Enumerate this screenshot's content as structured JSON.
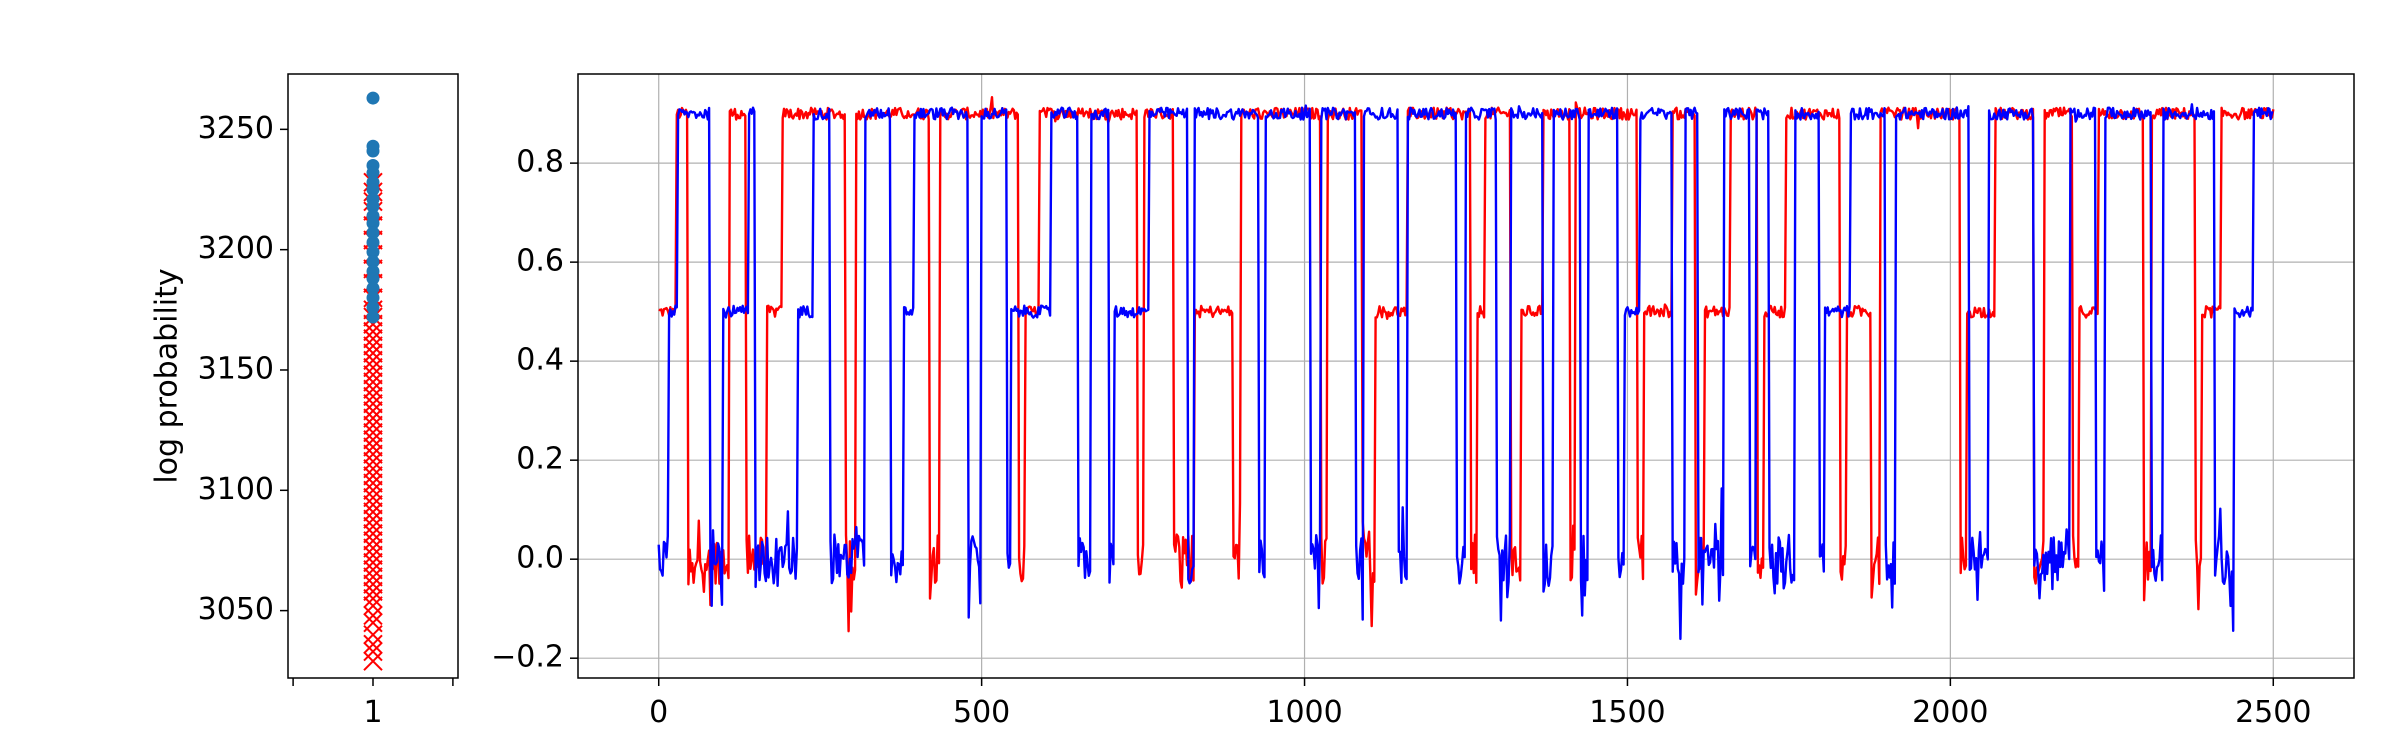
{
  "chart_data": [
    {
      "type": "scatter",
      "ylabel": "log probability",
      "ylim": [
        3022,
        3273
      ],
      "yticks": [
        3050,
        3100,
        3150,
        3200,
        3250
      ],
      "xlim": [
        0.5,
        1.5
      ],
      "xticks": [
        1
      ],
      "grid": false,
      "series": [
        {
          "marker": "x",
          "color": "#ff0000",
          "x": 1,
          "values": [
            3029,
            3033,
            3036,
            3040,
            3045,
            3048,
            3052,
            3055,
            3058,
            3061,
            3064,
            3067,
            3070,
            3073,
            3076,
            3079,
            3082,
            3085,
            3088,
            3091,
            3094,
            3097,
            3100,
            3103,
            3106,
            3109,
            3112,
            3115,
            3118,
            3121,
            3124,
            3127,
            3130,
            3133,
            3136,
            3139,
            3142,
            3145,
            3148,
            3151,
            3154,
            3157,
            3160,
            3163,
            3166,
            3169,
            3172,
            3175,
            3180,
            3186,
            3192,
            3198,
            3204,
            3210,
            3216,
            3220,
            3224,
            3228
          ]
        },
        {
          "marker": "o",
          "color": "#1f77b4",
          "x": 1,
          "values": [
            3263,
            3243,
            3241,
            3235,
            3232,
            3228,
            3225,
            3221,
            3218,
            3214,
            3211,
            3207,
            3203,
            3199,
            3195,
            3191,
            3188,
            3184,
            3180,
            3176,
            3172
          ]
        }
      ]
    },
    {
      "type": "line",
      "xlim": [
        -125,
        2625
      ],
      "ylim": [
        -0.24,
        0.98
      ],
      "xticks": [
        0,
        500,
        1000,
        1500,
        2000,
        2500
      ],
      "yticks": [
        -0.2,
        0.0,
        0.2,
        0.4,
        0.6,
        0.8
      ],
      "ytick_labels": [
        "−0.2",
        "0.0",
        "0.2",
        "0.4",
        "0.6",
        "0.8"
      ],
      "grid": true,
      "x_max": 2500,
      "series": [
        {
          "color": "#ff0000",
          "levels": [
            0.0,
            0.5,
            0.9
          ],
          "segments": [
            [
              0,
              1
            ],
            [
              28,
              2
            ],
            [
              45,
              0
            ],
            [
              110,
              2
            ],
            [
              135,
              0
            ],
            [
              168,
              1
            ],
            [
              192,
              2
            ],
            [
              290,
              0
            ],
            [
              305,
              2
            ],
            [
              420,
              0
            ],
            [
              435,
              2
            ],
            [
              558,
              0
            ],
            [
              568,
              1
            ],
            [
              590,
              2
            ],
            [
              742,
              0
            ],
            [
              752,
              2
            ],
            [
              798,
              0
            ],
            [
              830,
              1
            ],
            [
              890,
              0
            ],
            [
              902,
              2
            ],
            [
              1025,
              0
            ],
            [
              1035,
              2
            ],
            [
              1090,
              0
            ],
            [
              1110,
              1
            ],
            [
              1160,
              2
            ],
            [
              1258,
              0
            ],
            [
              1268,
              1
            ],
            [
              1280,
              2
            ],
            [
              1320,
              0
            ],
            [
              1335,
              1
            ],
            [
              1370,
              2
            ],
            [
              1412,
              0
            ],
            [
              1420,
              2
            ],
            [
              1516,
              0
            ],
            [
              1525,
              1
            ],
            [
              1570,
              2
            ],
            [
              1605,
              0
            ],
            [
              1620,
              1
            ],
            [
              1660,
              2
            ],
            [
              1702,
              0
            ],
            [
              1712,
              1
            ],
            [
              1745,
              2
            ],
            [
              1830,
              0
            ],
            [
              1840,
              1
            ],
            [
              1878,
              0
            ],
            [
              1892,
              2
            ],
            [
              2015,
              0
            ],
            [
              2025,
              1
            ],
            [
              2070,
              2
            ],
            [
              2130,
              0
            ],
            [
              2145,
              2
            ],
            [
              2190,
              0
            ],
            [
              2200,
              1
            ],
            [
              2230,
              2
            ],
            [
              2300,
              0
            ],
            [
              2312,
              2
            ],
            [
              2380,
              0
            ],
            [
              2390,
              1
            ],
            [
              2420,
              2
            ],
            [
              2500,
              2
            ]
          ],
          "dip_min": -0.18,
          "plateau_noise": 0.012
        },
        {
          "color": "#0000ff",
          "levels": [
            0.0,
            0.5,
            0.9
          ],
          "segments": [
            [
              0,
              0
            ],
            [
              15,
              1
            ],
            [
              30,
              2
            ],
            [
              80,
              0
            ],
            [
              100,
              1
            ],
            [
              140,
              2
            ],
            [
              150,
              0
            ],
            [
              215,
              1
            ],
            [
              240,
              2
            ],
            [
              265,
              0
            ],
            [
              320,
              2
            ],
            [
              360,
              0
            ],
            [
              380,
              1
            ],
            [
              395,
              2
            ],
            [
              480,
              0
            ],
            [
              500,
              2
            ],
            [
              540,
              0
            ],
            [
              545,
              1
            ],
            [
              608,
              2
            ],
            [
              650,
              0
            ],
            [
              670,
              2
            ],
            [
              698,
              0
            ],
            [
              705,
              1
            ],
            [
              760,
              2
            ],
            [
              820,
              0
            ],
            [
              830,
              2
            ],
            [
              930,
              0
            ],
            [
              940,
              2
            ],
            [
              1010,
              0
            ],
            [
              1025,
              2
            ],
            [
              1080,
              0
            ],
            [
              1092,
              2
            ],
            [
              1145,
              0
            ],
            [
              1160,
              2
            ],
            [
              1235,
              0
            ],
            [
              1250,
              2
            ],
            [
              1298,
              0
            ],
            [
              1320,
              2
            ],
            [
              1370,
              0
            ],
            [
              1385,
              2
            ],
            [
              1427,
              0
            ],
            [
              1440,
              2
            ],
            [
              1485,
              0
            ],
            [
              1495,
              1
            ],
            [
              1520,
              2
            ],
            [
              1570,
              0
            ],
            [
              1590,
              2
            ],
            [
              1610,
              0
            ],
            [
              1650,
              2
            ],
            [
              1690,
              0
            ],
            [
              1700,
              2
            ],
            [
              1720,
              0
            ],
            [
              1760,
              2
            ],
            [
              1798,
              0
            ],
            [
              1805,
              1
            ],
            [
              1845,
              2
            ],
            [
              1900,
              0
            ],
            [
              1915,
              2
            ],
            [
              2030,
              0
            ],
            [
              2060,
              2
            ],
            [
              2130,
              0
            ],
            [
              2185,
              2
            ],
            [
              2225,
              0
            ],
            [
              2240,
              2
            ],
            [
              2312,
              0
            ],
            [
              2330,
              2
            ],
            [
              2410,
              0
            ],
            [
              2440,
              1
            ],
            [
              2470,
              2
            ],
            [
              2500,
              2
            ]
          ],
          "dip_min": -0.18,
          "plateau_noise": 0.012
        }
      ]
    }
  ]
}
